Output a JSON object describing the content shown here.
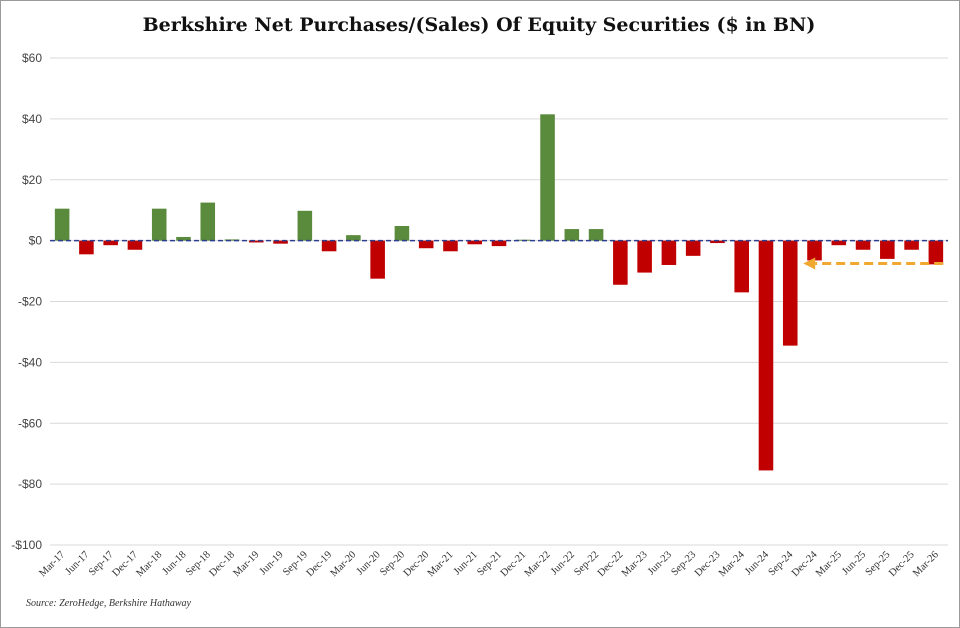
{
  "chart_data": {
    "type": "bar",
    "title": "Berkshire Net Purchases/(Sales) Of Equity Securities ($ in BN)",
    "xlabel": "",
    "ylabel": "",
    "ylim": [
      -100,
      60
    ],
    "yticks": [
      60,
      40,
      20,
      0,
      -20,
      -40,
      -60,
      -80,
      -100
    ],
    "ytick_labels": [
      "$60",
      "$40",
      "$20",
      "$0",
      "-$20",
      "-$40",
      "-$60",
      "-$80",
      "-$100"
    ],
    "grid": "horizontal",
    "colors": {
      "positive": "#5a8a3c",
      "negative": "#c00000",
      "zero_line": "#2e3f8f",
      "arrow": "#f0a830"
    },
    "categories": [
      "Mar-17",
      "Jun-17",
      "Sep-17",
      "Dec-17",
      "Mar-18",
      "Jun-18",
      "Sep-18",
      "Dec-18",
      "Mar-19",
      "Jun-19",
      "Sep-19",
      "Dec-19",
      "Mar-20",
      "Jun-20",
      "Sep-20",
      "Dec-20",
      "Mar-21",
      "Jun-21",
      "Sep-21",
      "Dec-21",
      "Mar-22",
      "Jun-22",
      "Sep-22",
      "Dec-22",
      "Mar-23",
      "Jun-23",
      "Sep-23",
      "Dec-23",
      "Mar-24",
      "Jun-24",
      "Sep-24",
      "Dec-24",
      "Mar-25",
      "Jun-25",
      "Sep-25",
      "Dec-25",
      "Mar-26"
    ],
    "values": [
      10.5,
      -4.5,
      -1.5,
      -3.0,
      10.5,
      1.2,
      12.5,
      0.4,
      -0.6,
      -1.0,
      9.8,
      -3.5,
      1.8,
      -12.5,
      4.8,
      -2.5,
      -3.5,
      -1.2,
      -1.8,
      0.3,
      41.5,
      3.8,
      3.8,
      -14.5,
      -10.5,
      -8.0,
      -5.0,
      -0.8,
      -17.0,
      -75.5,
      -34.5,
      -6.5,
      -1.5,
      -3.0,
      -6.0,
      -3.0,
      -7.8
    ],
    "annotation": {
      "type": "dashed-arrow",
      "from_category": "Mar-26",
      "to_category": "Dec-24",
      "value": -7.5
    }
  },
  "source": "Source: ZeroHedge, Berkshire Hathaway"
}
